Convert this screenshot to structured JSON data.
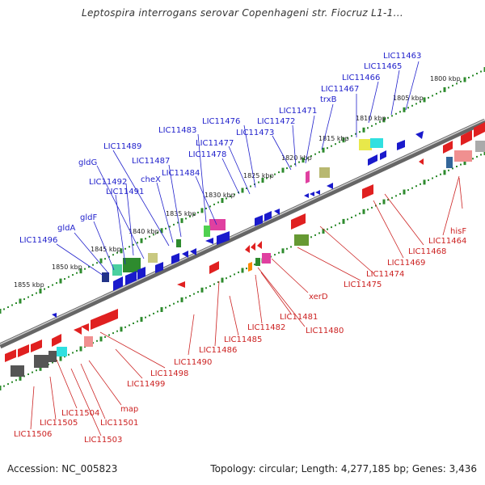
{
  "title": "Leptospira interrogans serovar Copenhageni str. Fiocruz L1-1...",
  "footer": {
    "accession": "Accession: NC_005823",
    "stats": "Topology: circular; Length: 4,277,185 bp; Genes: 3,436"
  },
  "colors": {
    "upper_label": "#2222cc",
    "lower_label": "#cc2222",
    "tick": "#2e8b2e",
    "backbone": "#888888"
  },
  "kbp_ticks": [
    "1800 kbp",
    "1805 kbp",
    "1810 kbp",
    "1815 kbp",
    "1820 kbp",
    "1825 kbp",
    "1830 kbp",
    "1835 kbp",
    "1840 kbp",
    "1845 kbp",
    "1850 kbp",
    "1855 kbp"
  ],
  "upper_labels": [
    "LIC11463",
    "LIC11465",
    "LIC11466",
    "LIC11467",
    "trxB",
    "LIC11471",
    "LIC11472",
    "LIC11473",
    "LIC11476",
    "LIC11477",
    "LIC11478",
    "LIC11483",
    "LIC11484",
    "LIC11487",
    "cheX",
    "LIC11489",
    "gldG",
    "LIC11492",
    "LIC11491",
    "gldF",
    "gldA",
    "LIC11496"
  ],
  "lower_labels": [
    "hisF",
    "LIC11464",
    "LIC11468",
    "LIC11469",
    "LIC11474",
    "LIC11475",
    "xerD",
    "LIC11481",
    "LIC11480",
    "LIC11482",
    "LIC11485",
    "LIC11486",
    "LIC11490",
    "LIC11498",
    "LIC11499",
    "map",
    "LIC11501",
    "LIC11503",
    "LIC11504",
    "LIC11505",
    "LIC11506"
  ]
}
